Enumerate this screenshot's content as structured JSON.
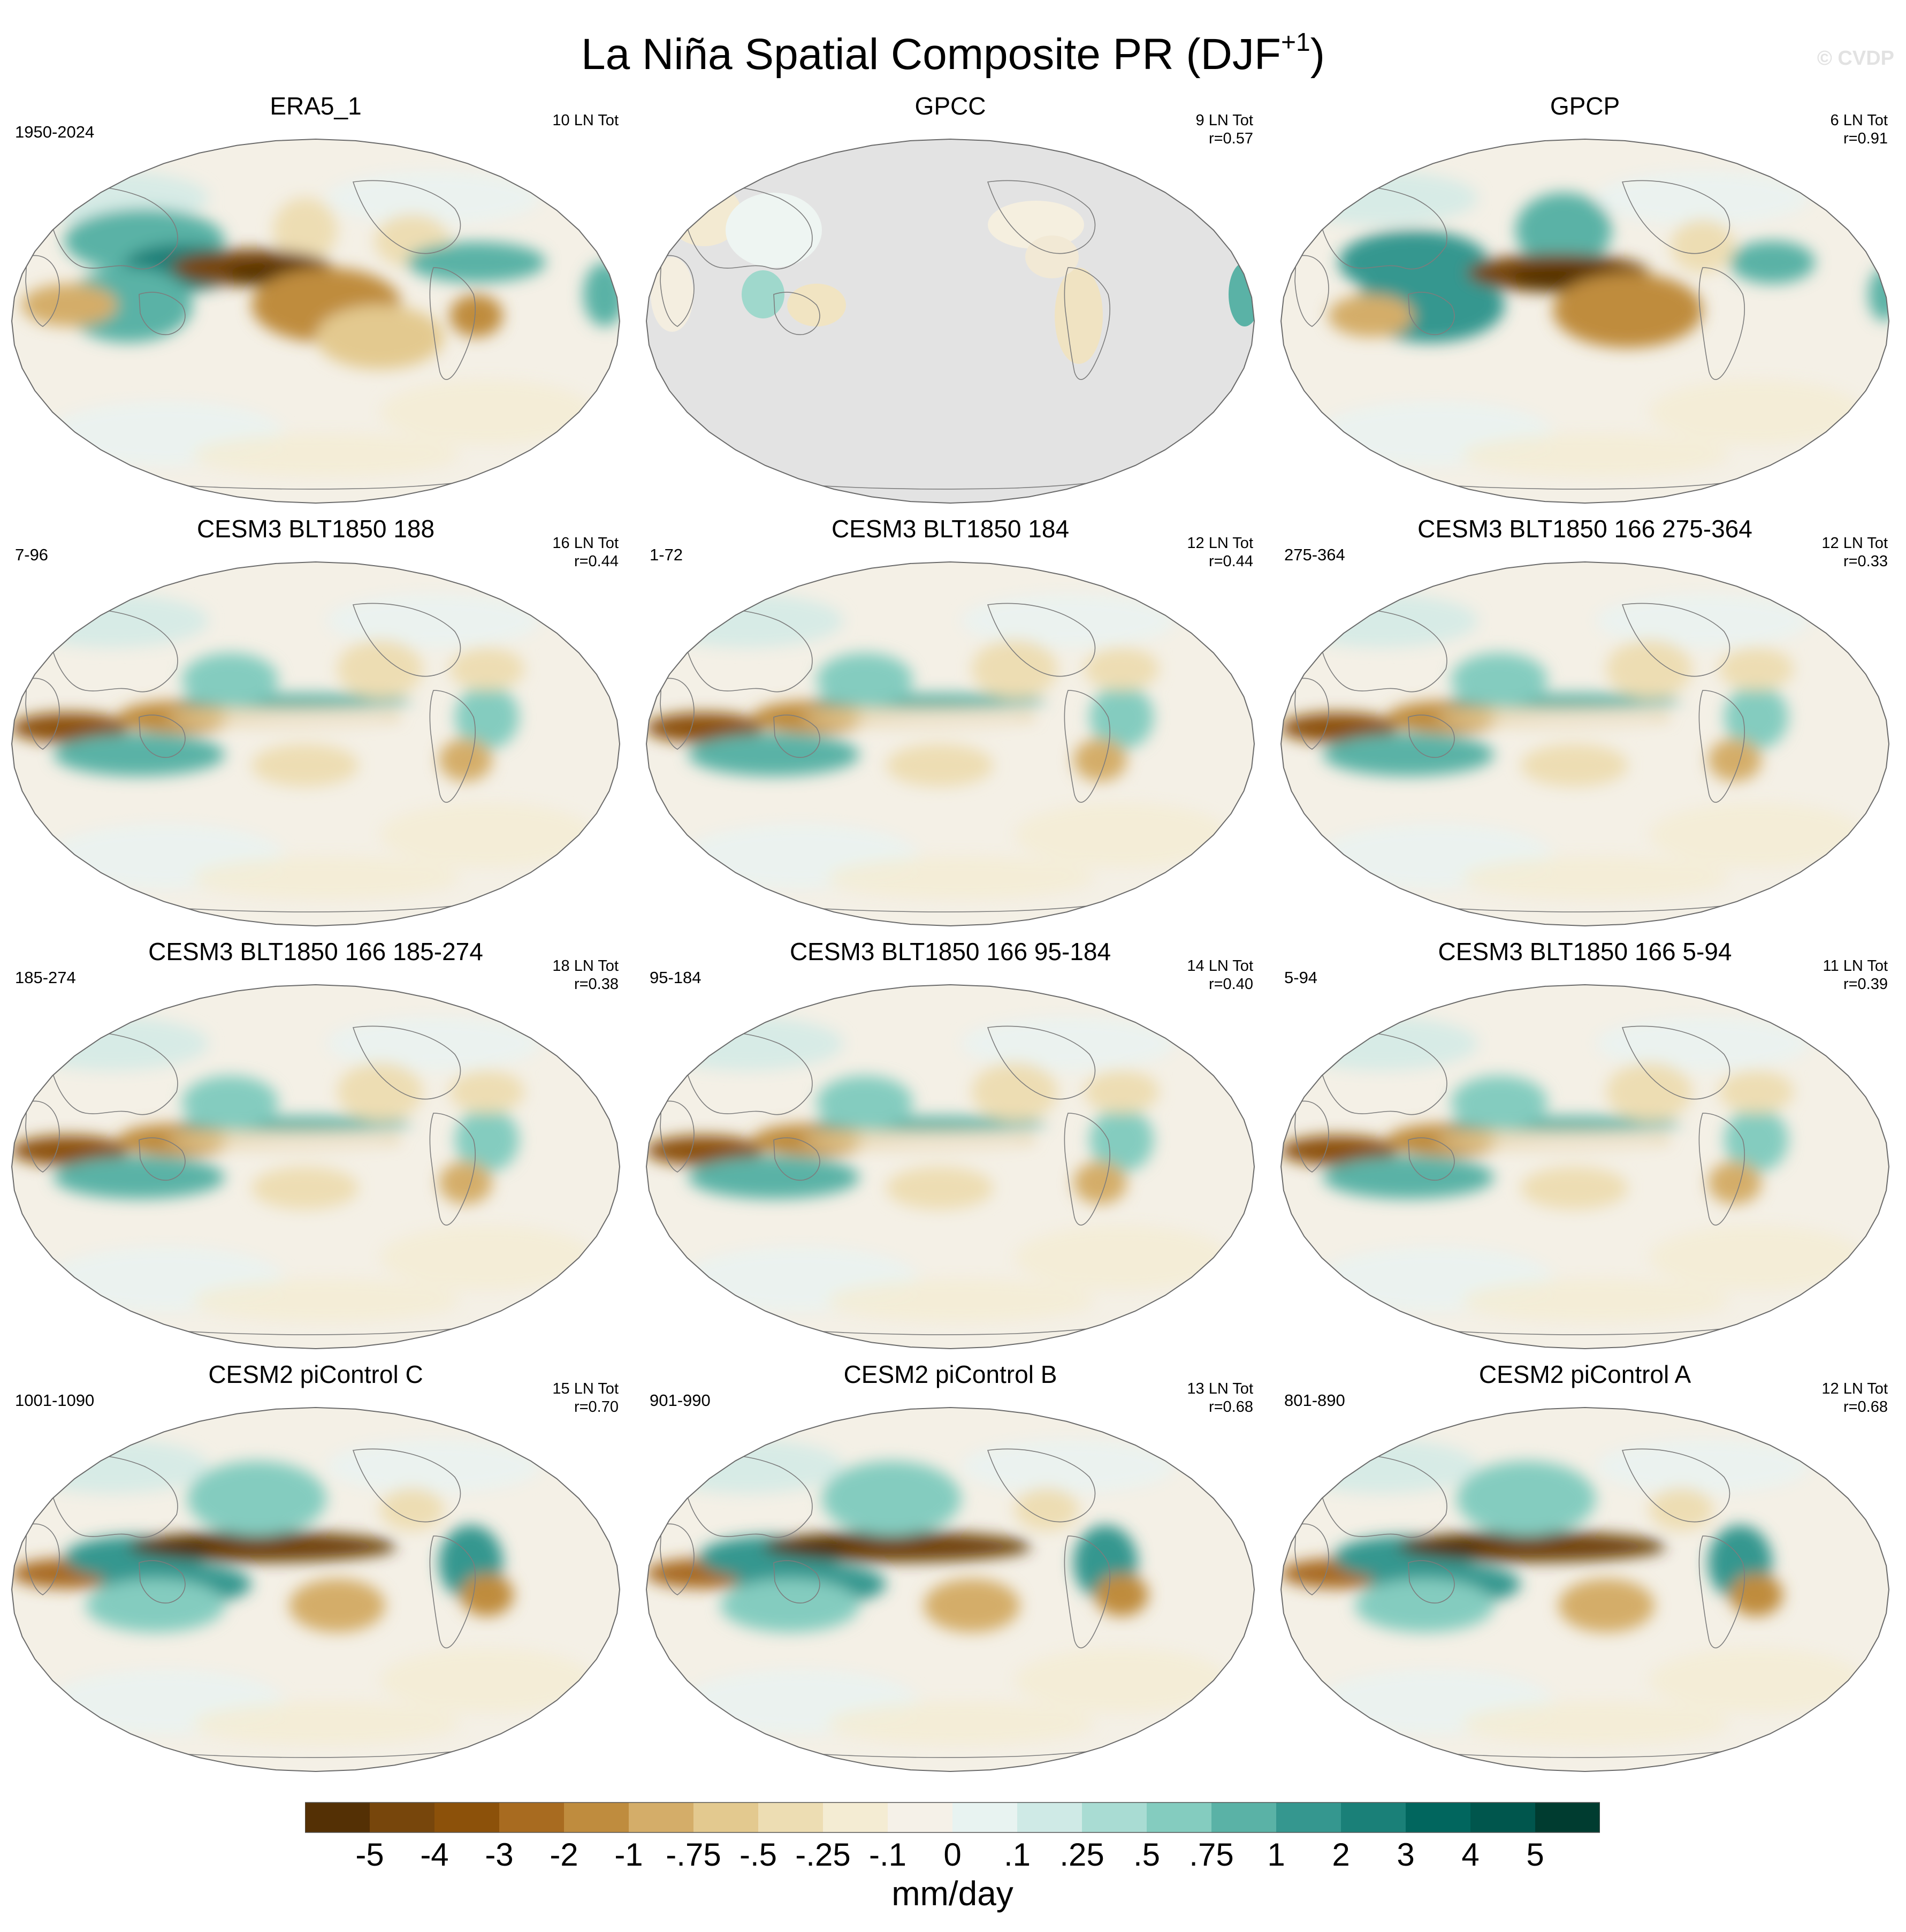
{
  "title": {
    "main": "La Niña Spatial Composite PR (DJF",
    "superscript": "+1",
    "close": ")"
  },
  "copyright": "© CVDP",
  "panels": [
    {
      "title": "ERA5_1",
      "years": "1950-2024",
      "count": "10 LN Tot",
      "r": "",
      "style": "era5",
      "masked": false
    },
    {
      "title": "GPCC",
      "years": "",
      "count": "9 LN Tot",
      "r": "r=0.57",
      "style": "gpcc",
      "masked": true
    },
    {
      "title": "GPCP",
      "years": "",
      "count": "6 LN Tot",
      "r": "r=0.91",
      "style": "gpcp",
      "masked": false
    },
    {
      "title": "CESM3 BLT1850 188",
      "years": "7-96",
      "count": "16 LN Tot",
      "r": "r=0.44",
      "style": "cesm3",
      "masked": false
    },
    {
      "title": "CESM3 BLT1850 184",
      "years": "1-72",
      "count": "12 LN Tot",
      "r": "r=0.44",
      "style": "cesm3",
      "masked": false
    },
    {
      "title": "CESM3 BLT1850 166 275-364",
      "years": "275-364",
      "count": "12 LN Tot",
      "r": "r=0.33",
      "style": "cesm3",
      "masked": false
    },
    {
      "title": "CESM3 BLT1850 166 185-274",
      "years": "185-274",
      "count": "18 LN Tot",
      "r": "r=0.38",
      "style": "cesm3",
      "masked": false
    },
    {
      "title": "CESM3 BLT1850 166 95-184",
      "years": "95-184",
      "count": "14 LN Tot",
      "r": "r=0.40",
      "style": "cesm3",
      "masked": false
    },
    {
      "title": "CESM3 BLT1850 166 5-94",
      "years": "5-94",
      "count": "11 LN Tot",
      "r": "r=0.39",
      "style": "cesm3",
      "masked": false
    },
    {
      "title": "CESM2 piControl C",
      "years": "1001-1090",
      "count": "15 LN Tot",
      "r": "r=0.70",
      "style": "cesm2",
      "masked": false
    },
    {
      "title": "CESM2 piControl B",
      "years": "901-990",
      "count": "13 LN Tot",
      "r": "r=0.68",
      "style": "cesm2",
      "masked": false
    },
    {
      "title": "CESM2 piControl A",
      "years": "801-890",
      "count": "12 LN Tot",
      "r": "r=0.68",
      "style": "cesm2",
      "masked": false
    }
  ],
  "colorbar": {
    "label": "mm/day",
    "tick_labels": [
      "-5",
      "-4",
      "-3",
      "-2",
      "-1",
      "-.75",
      "-.5",
      "-.25",
      "-.1",
      "0",
      ".1",
      ".25",
      ".5",
      ".75",
      "1",
      "2",
      "3",
      "4",
      "5"
    ],
    "colors": [
      "#543005",
      "#77460c",
      "#8c510a",
      "#a86b20",
      "#bf8c3e",
      "#d4ad69",
      "#e3c98f",
      "#edddb3",
      "#f4ecd3",
      "#f5f1e8",
      "#e8f3f1",
      "#cfeae6",
      "#a9dcd3",
      "#84ccbf",
      "#5ab2a6",
      "#35978f",
      "#1a8078",
      "#01665e",
      "#00564d",
      "#003c30"
    ]
  },
  "chart_data": {
    "type": "heatmap",
    "title": "La Niña Spatial Composite PR (DJF+1)",
    "projection": "Robinson (global, Pacific-centred)",
    "units": "mm/day",
    "levels": [
      -5,
      -4,
      -3,
      -2,
      -1,
      -0.75,
      -0.5,
      -0.25,
      -0.1,
      0,
      0.1,
      0.25,
      0.5,
      0.75,
      1,
      2,
      3,
      4,
      5
    ],
    "panels": [
      {
        "name": "ERA5_1",
        "period": "1950-2024",
        "la_nina_events": 10,
        "pattern_r": null
      },
      {
        "name": "GPCC",
        "la_nina_events": 9,
        "pattern_r": 0.57,
        "coverage": "land only"
      },
      {
        "name": "GPCP",
        "la_nina_events": 6,
        "pattern_r": 0.91
      },
      {
        "name": "CESM3 BLT1850 188",
        "period": "7-96",
        "la_nina_events": 16,
        "pattern_r": 0.44
      },
      {
        "name": "CESM3 BLT1850 184",
        "period": "1-72",
        "la_nina_events": 12,
        "pattern_r": 0.44
      },
      {
        "name": "CESM3 BLT1850 166 275-364",
        "period": "275-364",
        "la_nina_events": 12,
        "pattern_r": 0.33
      },
      {
        "name": "CESM3 BLT1850 166 185-274",
        "period": "185-274",
        "la_nina_events": 18,
        "pattern_r": 0.38
      },
      {
        "name": "CESM3 BLT1850 166 95-184",
        "period": "95-184",
        "la_nina_events": 14,
        "pattern_r": 0.4
      },
      {
        "name": "CESM3 BLT1850 166 5-94",
        "period": "5-94",
        "la_nina_events": 11,
        "pattern_r": 0.39
      },
      {
        "name": "CESM2 piControl C",
        "period": "1001-1090",
        "la_nina_events": 15,
        "pattern_r": 0.7
      },
      {
        "name": "CESM2 piControl B",
        "period": "901-990",
        "la_nina_events": 13,
        "pattern_r": 0.68
      },
      {
        "name": "CESM2 piControl A",
        "period": "801-890",
        "la_nina_events": 12,
        "pattern_r": 0.68
      }
    ]
  }
}
